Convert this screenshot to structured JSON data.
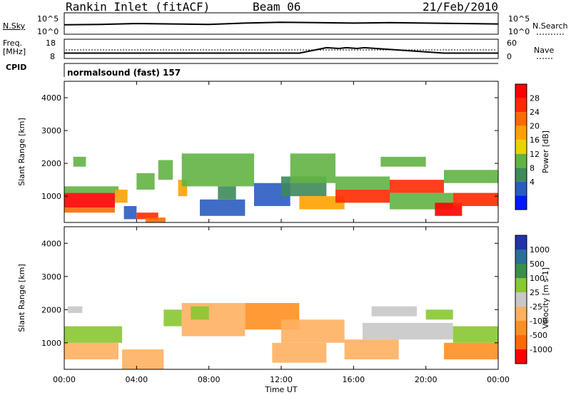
{
  "header": {
    "station": "Rankin Inlet (fitACF)",
    "beam": "Beam 06",
    "date": "21/Feb/2010"
  },
  "noise_panel": {
    "left_label": "N.Sky",
    "right_label": "N.Search",
    "ticks": [
      "10^5",
      "10^0"
    ]
  },
  "freq_panel": {
    "left_label_1": "Freq.",
    "left_label_2": "[MHz]",
    "left_ticks": [
      "18",
      "8"
    ],
    "right_label": "Nave",
    "right_ticks": [
      "60",
      "0"
    ]
  },
  "cpid": {
    "label": "CPID",
    "value": "normalsound (fast) 157"
  },
  "colors": {
    "power_scale": [
      "#0018ff",
      "#2a5cc0",
      "#3d8a5a",
      "#62b244",
      "#e8d400",
      "#ffa200",
      "#ff6a00",
      "#ff2a00",
      "#ff0000"
    ],
    "velocity_scale": [
      "#2233aa",
      "#2a6e9a",
      "#3a8e4c",
      "#88c830",
      "#c8c8c8",
      "#ffb060",
      "#ff9020",
      "#ff6a00",
      "#ff0000"
    ]
  },
  "chart_data": [
    {
      "type": "line",
      "panel": "noise",
      "series": [
        {
          "name": "N.Sky",
          "x": [
            0,
            2,
            4,
            6,
            8,
            10,
            12,
            14,
            16,
            18,
            20,
            22,
            24
          ],
          "y": [
            2.2,
            2.3,
            2.5,
            2.4,
            2.3,
            2.6,
            2.8,
            2.7,
            2.6,
            2.7,
            2.6,
            2.5,
            2.4
          ]
        }
      ]
    },
    {
      "type": "line",
      "panel": "frequency",
      "series": [
        {
          "name": "Freq",
          "x": [
            0,
            13,
            14.5,
            15.2,
            15.6,
            16.2,
            16.6,
            21,
            24
          ],
          "y": [
            10.8,
            10.8,
            13.6,
            13.2,
            13.6,
            13.2,
            13.6,
            10.8,
            10.8
          ]
        }
      ]
    },
    {
      "type": "heatmap",
      "title": "Power",
      "xlabel": "Time UT",
      "ylabel": "Slant Range [km]",
      "xlim": [
        0,
        24
      ],
      "ylim": [
        200,
        4500
      ],
      "xticks": [
        "00:00",
        "04:00",
        "08:00",
        "12:00",
        "16:00",
        "20:00",
        "00:00"
      ],
      "yticks": [
        "1000",
        "2000",
        "3000",
        "4000"
      ],
      "colorbar_label": "Power [dB]",
      "colorbar_ticks": [
        "28",
        "24",
        "20",
        "16",
        "12",
        "8",
        "4"
      ],
      "regions": [
        {
          "t0": 0.0,
          "t1": 2.8,
          "r0": 650,
          "r1": 1100,
          "value": 30
        },
        {
          "t0": 0.0,
          "t1": 2.8,
          "r0": 500,
          "r1": 650,
          "value": 22
        },
        {
          "t0": 0.0,
          "t1": 3.0,
          "r0": 1100,
          "r1": 1300,
          "value": 14
        },
        {
          "t0": 0.5,
          "t1": 1.2,
          "r0": 1900,
          "r1": 2200,
          "value": 12
        },
        {
          "t0": 2.8,
          "t1": 3.5,
          "r0": 800,
          "r1": 1200,
          "value": 18
        },
        {
          "t0": 3.3,
          "t1": 4.0,
          "r0": 300,
          "r1": 700,
          "value": 6
        },
        {
          "t0": 4.0,
          "t1": 5.2,
          "r0": 300,
          "r1": 500,
          "value": 28
        },
        {
          "t0": 4.5,
          "t1": 5.6,
          "r0": 200,
          "r1": 350,
          "value": 24
        },
        {
          "t0": 4.0,
          "t1": 5.0,
          "r0": 1200,
          "r1": 1700,
          "value": 14
        },
        {
          "t0": 5.2,
          "t1": 6.0,
          "r0": 1500,
          "r1": 2100,
          "value": 12
        },
        {
          "t0": 6.3,
          "t1": 6.8,
          "r0": 1000,
          "r1": 1500,
          "value": 18
        },
        {
          "t0": 6.5,
          "t1": 10.5,
          "r0": 1300,
          "r1": 2300,
          "value": 12
        },
        {
          "t0": 7.5,
          "t1": 10.0,
          "r0": 400,
          "r1": 900,
          "value": 6
        },
        {
          "t0": 8.5,
          "t1": 9.5,
          "r0": 900,
          "r1": 1300,
          "value": 10
        },
        {
          "t0": 10.5,
          "t1": 12.5,
          "r0": 700,
          "r1": 1400,
          "value": 6
        },
        {
          "t0": 12.0,
          "t1": 14.5,
          "r0": 1000,
          "r1": 1600,
          "value": 10
        },
        {
          "t0": 12.5,
          "t1": 15.0,
          "r0": 1400,
          "r1": 2300,
          "value": 12
        },
        {
          "t0": 13.0,
          "t1": 15.5,
          "r0": 600,
          "r1": 1000,
          "value": 18
        },
        {
          "t0": 15.0,
          "t1": 18.0,
          "r0": 800,
          "r1": 1200,
          "value": 28
        },
        {
          "t0": 15.0,
          "t1": 18.0,
          "r0": 1200,
          "r1": 1600,
          "value": 14
        },
        {
          "t0": 18.0,
          "t1": 21.0,
          "r0": 1100,
          "r1": 1500,
          "value": 26
        },
        {
          "t0": 18.0,
          "t1": 21.5,
          "r0": 600,
          "r1": 1100,
          "value": 12
        },
        {
          "t0": 20.5,
          "t1": 22.0,
          "r0": 400,
          "r1": 800,
          "value": 30
        },
        {
          "t0": 21.5,
          "t1": 24.0,
          "r0": 700,
          "r1": 1100,
          "value": 28
        },
        {
          "t0": 17.5,
          "t1": 20.0,
          "r0": 1900,
          "r1": 2200,
          "value": 14
        },
        {
          "t0": 21.0,
          "t1": 24.0,
          "r0": 1400,
          "r1": 1800,
          "value": 12
        }
      ]
    },
    {
      "type": "heatmap",
      "title": "Velocity",
      "xlabel": "Time UT",
      "ylabel": "Slant Range [km]",
      "xlim": [
        0,
        24
      ],
      "ylim": [
        200,
        4500
      ],
      "xticks": [
        "00:00",
        "04:00",
        "08:00",
        "12:00",
        "16:00",
        "20:00",
        "00:00"
      ],
      "yticks": [
        "1000",
        "2000",
        "3000",
        "4000"
      ],
      "colorbar_label": "Velocity [m s-1]",
      "colorbar_ticks": [
        "1000",
        "500",
        "100",
        "25",
        "-25",
        "-100",
        "-500",
        "-1000"
      ],
      "regions": [
        {
          "t0": 0.0,
          "t1": 3.2,
          "r0": 1000,
          "r1": 1500,
          "value": 200
        },
        {
          "t0": 0.0,
          "t1": 3.0,
          "r0": 500,
          "r1": 1000,
          "value": -200
        },
        {
          "t0": 0.2,
          "t1": 1.0,
          "r0": 1900,
          "r1": 2100,
          "value": 0
        },
        {
          "t0": 3.2,
          "t1": 5.5,
          "r0": 200,
          "r1": 800,
          "value": -150
        },
        {
          "t0": 5.5,
          "t1": 6.5,
          "r0": 1500,
          "r1": 2000,
          "value": 150
        },
        {
          "t0": 6.5,
          "t1": 10.0,
          "r0": 1200,
          "r1": 2200,
          "value": -400
        },
        {
          "t0": 7.0,
          "t1": 8.0,
          "r0": 1700,
          "r1": 2100,
          "value": 300
        },
        {
          "t0": 10.0,
          "t1": 13.0,
          "r0": 1400,
          "r1": 2200,
          "value": -500
        },
        {
          "t0": 12.0,
          "t1": 15.5,
          "r0": 1000,
          "r1": 1700,
          "value": -400
        },
        {
          "t0": 11.5,
          "t1": 14.5,
          "r0": 400,
          "r1": 1000,
          "value": -200
        },
        {
          "t0": 15.5,
          "t1": 18.5,
          "r0": 500,
          "r1": 1100,
          "value": -300
        },
        {
          "t0": 16.5,
          "t1": 21.5,
          "r0": 1100,
          "r1": 1600,
          "value": 0
        },
        {
          "t0": 17.0,
          "t1": 19.5,
          "r0": 1800,
          "r1": 2100,
          "value": 0
        },
        {
          "t0": 21.5,
          "t1": 24.0,
          "r0": 1000,
          "r1": 1500,
          "value": 200
        },
        {
          "t0": 21.0,
          "t1": 24.0,
          "r0": 500,
          "r1": 1000,
          "value": -500
        },
        {
          "t0": 20.0,
          "t1": 21.5,
          "r0": 1700,
          "r1": 2000,
          "value": 200
        }
      ]
    }
  ]
}
